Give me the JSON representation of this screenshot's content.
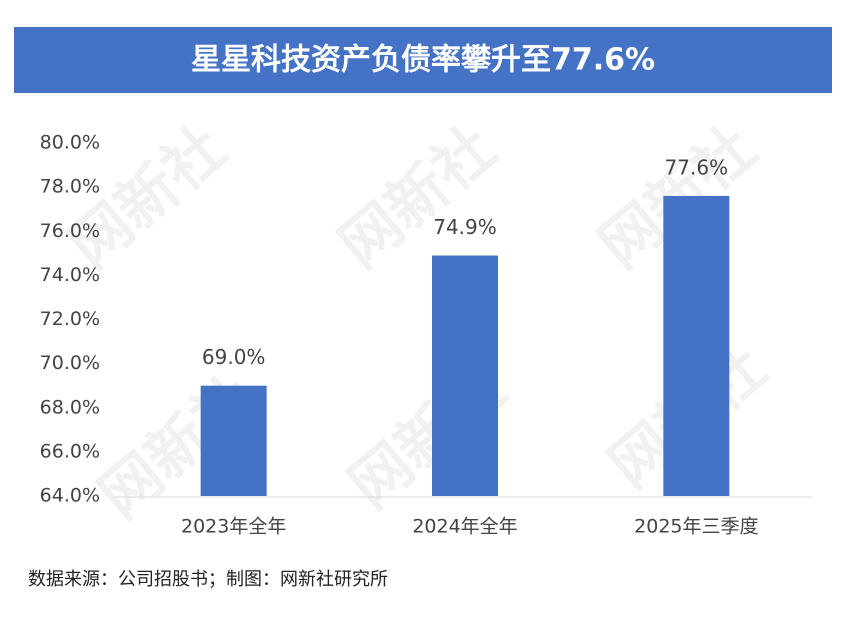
{
  "chart_data": {
    "type": "bar",
    "title": "星星科技资产负债率攀升至77.6%",
    "categories": [
      "2023年全年",
      "2024年全年",
      "2025年三季度"
    ],
    "values": [
      69.0,
      74.9,
      77.6
    ],
    "value_labels": [
      "69.0%",
      "74.9%",
      "77.6%"
    ],
    "color": "#4472c4",
    "ylim": [
      64,
      80
    ],
    "yticks": [
      {
        "value": 64,
        "label": "64.0%"
      },
      {
        "value": 66,
        "label": "66.0%"
      },
      {
        "value": 68,
        "label": "68.0%"
      },
      {
        "value": 70,
        "label": "70.0%"
      },
      {
        "value": 72,
        "label": "72.0%"
      },
      {
        "value": 74,
        "label": "74.0%"
      },
      {
        "value": 76,
        "label": "76.0%"
      },
      {
        "value": 78,
        "label": "78.0%"
      },
      {
        "value": 80,
        "label": "80.0%"
      }
    ],
    "grid": false,
    "source": "数据来源：公司招股书；制图：网新社研究所",
    "watermark": "网新社"
  }
}
